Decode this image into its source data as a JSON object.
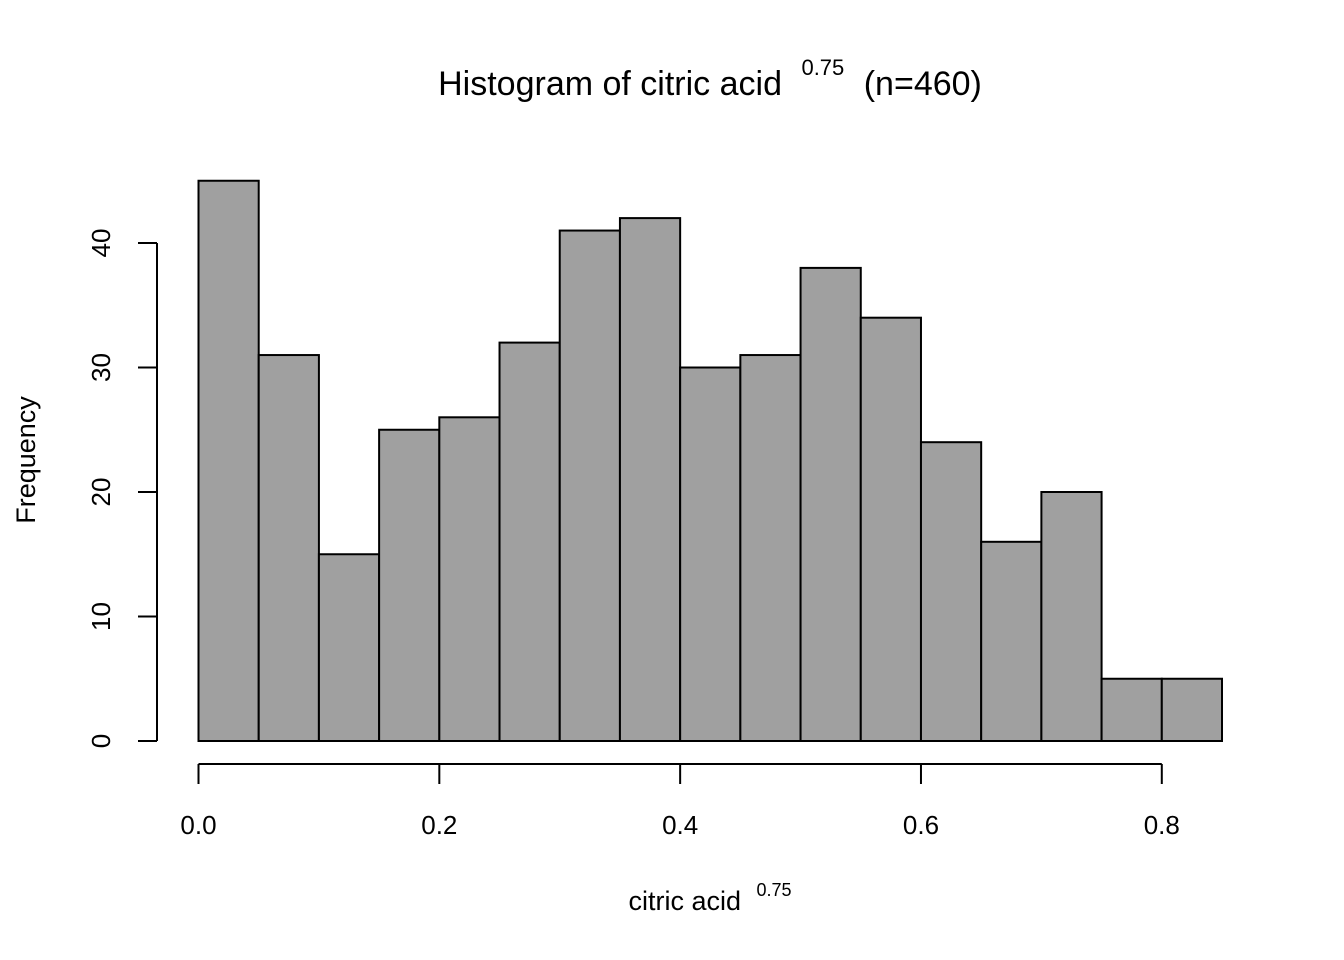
{
  "chart_data": {
    "type": "bar",
    "title": {
      "prefix": "Histogram of citric acid",
      "superscript": "0.75",
      "suffix": "(n=460)"
    },
    "xlabel": {
      "text": "citric acid",
      "superscript": "0.75"
    },
    "ylabel": "Frequency",
    "bin_edges": [
      0.0,
      0.05,
      0.1,
      0.15,
      0.2,
      0.25,
      0.3,
      0.35,
      0.4,
      0.45,
      0.5,
      0.55,
      0.6,
      0.65,
      0.7,
      0.75,
      0.8,
      0.85
    ],
    "values": [
      45,
      31,
      15,
      25,
      26,
      32,
      41,
      42,
      30,
      31,
      38,
      34,
      24,
      16,
      20,
      5,
      5
    ],
    "xlim": [
      0.0,
      0.85
    ],
    "ylim": [
      0,
      45
    ],
    "x_ticks": [
      0.0,
      0.2,
      0.4,
      0.6,
      0.8
    ],
    "x_tick_labels": [
      "0.0",
      "0.2",
      "0.4",
      "0.6",
      "0.8"
    ],
    "y_ticks": [
      0,
      10,
      20,
      30,
      40
    ],
    "y_tick_labels": [
      "0",
      "10",
      "20",
      "30",
      "40"
    ],
    "bar_color": "#a0a0a0",
    "grid": false
  }
}
